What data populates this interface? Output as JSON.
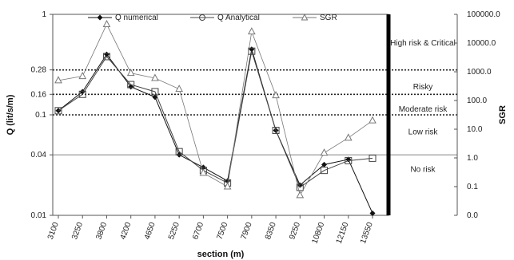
{
  "chart_data": {
    "type": "line",
    "xlabel": "section (m)",
    "ylabel": "Q (lit/s/m)",
    "y2label": "SGR",
    "categories": [
      "3100",
      "3250",
      "3800",
      "4200",
      "4650",
      "5250",
      "6700",
      "7500",
      "7900",
      "8350",
      "9250",
      "10800",
      "12150",
      "13550"
    ],
    "y_ticks": [
      "1",
      "0.28",
      "0.16",
      "0.1",
      "0.04",
      "0.01"
    ],
    "y2_ticks": [
      "100000.0",
      "10000.0",
      "1000.0",
      "100.0",
      "10.0",
      "1.0",
      "0.1",
      "0.0"
    ],
    "y_scale": "log",
    "y2_scale": "log",
    "legend_position": "top",
    "zones": [
      {
        "label": "High risk & Critical",
        "y2_value": 10000
      },
      {
        "label": "Risky",
        "y2_value": 300
      },
      {
        "label": "Moderate risk",
        "y2_value": 50
      },
      {
        "label": "Low risk",
        "y2_value": 8
      },
      {
        "label": "No risk",
        "y2_value": 0.4
      }
    ],
    "dotted_lines_y": [
      0.28,
      0.16,
      0.1
    ],
    "solid_line_y": 0.04,
    "series": [
      {
        "name": "Q numerical",
        "marker": "diamond",
        "color": "#111111",
        "values": [
          0.11,
          0.17,
          0.4,
          0.19,
          0.15,
          0.04,
          0.03,
          0.022,
          0.45,
          0.07,
          0.02,
          0.032,
          0.036,
          0.0105
        ]
      },
      {
        "name": "Q Analytical",
        "marker": "square",
        "color": "#444444",
        "values": [
          0.11,
          0.16,
          0.38,
          0.2,
          0.17,
          0.043,
          0.028,
          0.021,
          0.43,
          0.07,
          0.019,
          0.028,
          0.035,
          0.037
        ]
      },
      {
        "name": "SGR",
        "marker": "triangle",
        "color": "#777777",
        "values": [
          500,
          700,
          45000,
          900,
          600,
          250,
          0.3,
          0.1,
          25000,
          150,
          0.05,
          1.5,
          5,
          20
        ]
      }
    ]
  }
}
